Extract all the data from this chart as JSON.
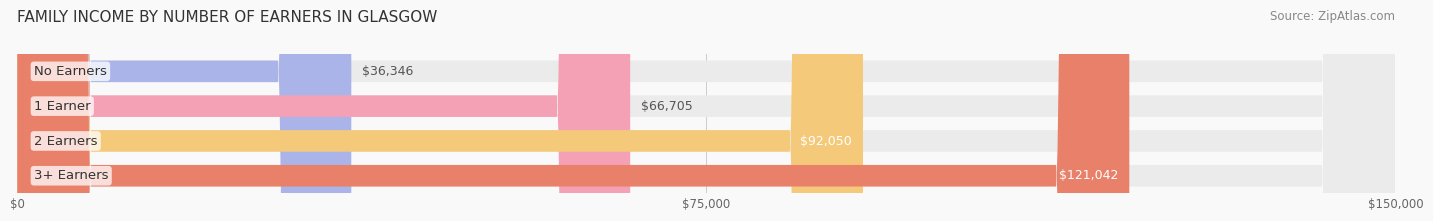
{
  "title": "FAMILY INCOME BY NUMBER OF EARNERS IN GLASGOW",
  "source": "Source: ZipAtlas.com",
  "categories": [
    "No Earners",
    "1 Earner",
    "2 Earners",
    "3+ Earners"
  ],
  "values": [
    36346,
    66705,
    92050,
    121042
  ],
  "bar_colors": [
    "#aab4e8",
    "#f4a0b5",
    "#f5c97a",
    "#e8806a"
  ],
  "track_color": "#ebebeb",
  "label_colors": [
    "#333333",
    "#333333",
    "#ffffff",
    "#ffffff"
  ],
  "value_labels": [
    "$36,346",
    "$66,705",
    "$92,050",
    "$121,042"
  ],
  "x_ticks": [
    0,
    75000,
    150000
  ],
  "x_tick_labels": [
    "$0",
    "$75,000",
    "$150,000"
  ],
  "xlim": [
    0,
    150000
  ],
  "background_color": "#f9f9f9",
  "bar_height": 0.62,
  "bar_gap": 0.18,
  "title_fontsize": 11,
  "label_fontsize": 9.5,
  "value_fontsize": 9,
  "source_fontsize": 8.5
}
